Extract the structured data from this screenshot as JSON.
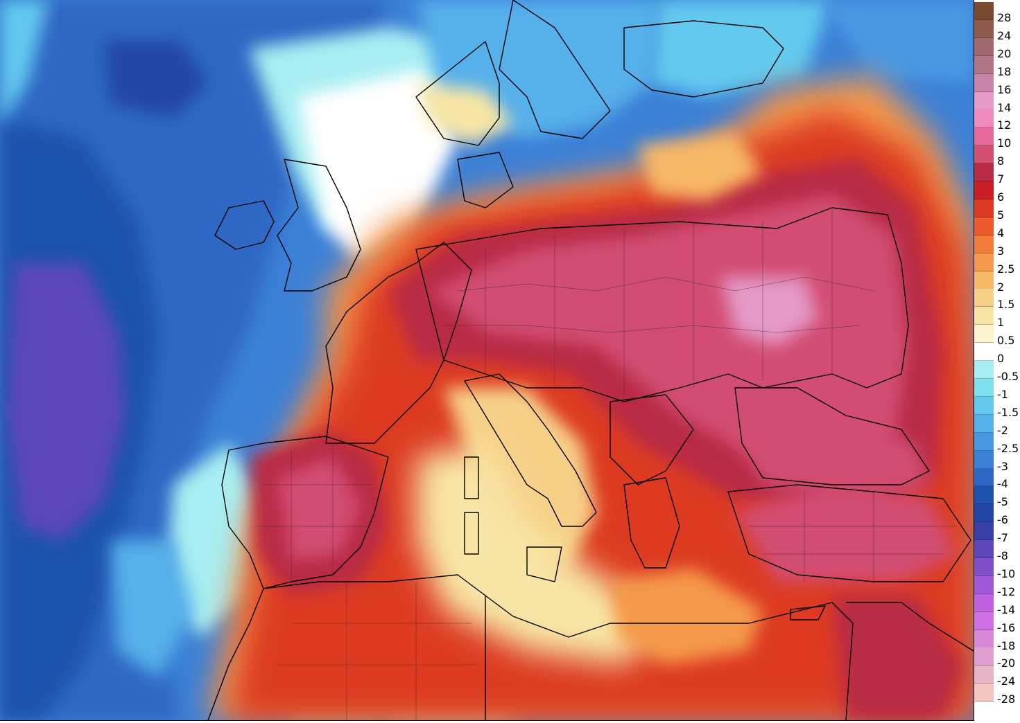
{
  "legend": {
    "entries": [
      {
        "label": "28",
        "color": "#7a4a30"
      },
      {
        "label": "24",
        "color": "#8e5a4c"
      },
      {
        "label": "20",
        "color": "#a06a70"
      },
      {
        "label": "18",
        "color": "#b27689"
      },
      {
        "label": "16",
        "color": "#c685a9"
      },
      {
        "label": "14",
        "color": "#e59ac8"
      },
      {
        "label": "12",
        "color": "#f08bbd"
      },
      {
        "label": "10",
        "color": "#e56a9b"
      },
      {
        "label": "8",
        "color": "#d24e73"
      },
      {
        "label": "7",
        "color": "#b82a45"
      },
      {
        "label": "6",
        "color": "#c81d27"
      },
      {
        "label": "5",
        "color": "#dc3a24"
      },
      {
        "label": "4",
        "color": "#ec5a2c"
      },
      {
        "label": "3",
        "color": "#f27c3a"
      },
      {
        "label": "2.5",
        "color": "#f59a4c"
      },
      {
        "label": "2",
        "color": "#f7b868"
      },
      {
        "label": "1.5",
        "color": "#f7d088"
      },
      {
        "label": "1",
        "color": "#f8e6a6"
      },
      {
        "label": "0.5",
        "color": "#fdf5cf"
      },
      {
        "label": "0",
        "color": "#ffffff"
      },
      {
        "label": "-0.5",
        "color": "#a8eef2"
      },
      {
        "label": "-1",
        "color": "#7fe0ee"
      },
      {
        "label": "-1.5",
        "color": "#64c9ef"
      },
      {
        "label": "-2",
        "color": "#56b0ea"
      },
      {
        "label": "-2.5",
        "color": "#4898e2"
      },
      {
        "label": "-3",
        "color": "#3b80d6"
      },
      {
        "label": "-4",
        "color": "#2e68c4"
      },
      {
        "label": "-5",
        "color": "#1f52ae"
      },
      {
        "label": "-6",
        "color": "#2244a4"
      },
      {
        "label": "-7",
        "color": "#3a3fa8"
      },
      {
        "label": "-8",
        "color": "#5c46b8"
      },
      {
        "label": "-10",
        "color": "#8050c8"
      },
      {
        "label": "-12",
        "color": "#a058d6"
      },
      {
        "label": "-14",
        "color": "#c060e0"
      },
      {
        "label": "-16",
        "color": "#d070e4"
      },
      {
        "label": "-18",
        "color": "#d88ad8"
      },
      {
        "label": "-20",
        "color": "#e0a0d0"
      },
      {
        "label": "-24",
        "color": "#e8b4c8"
      },
      {
        "label": "-28",
        "color": "#f2c6c0"
      }
    ]
  }
}
